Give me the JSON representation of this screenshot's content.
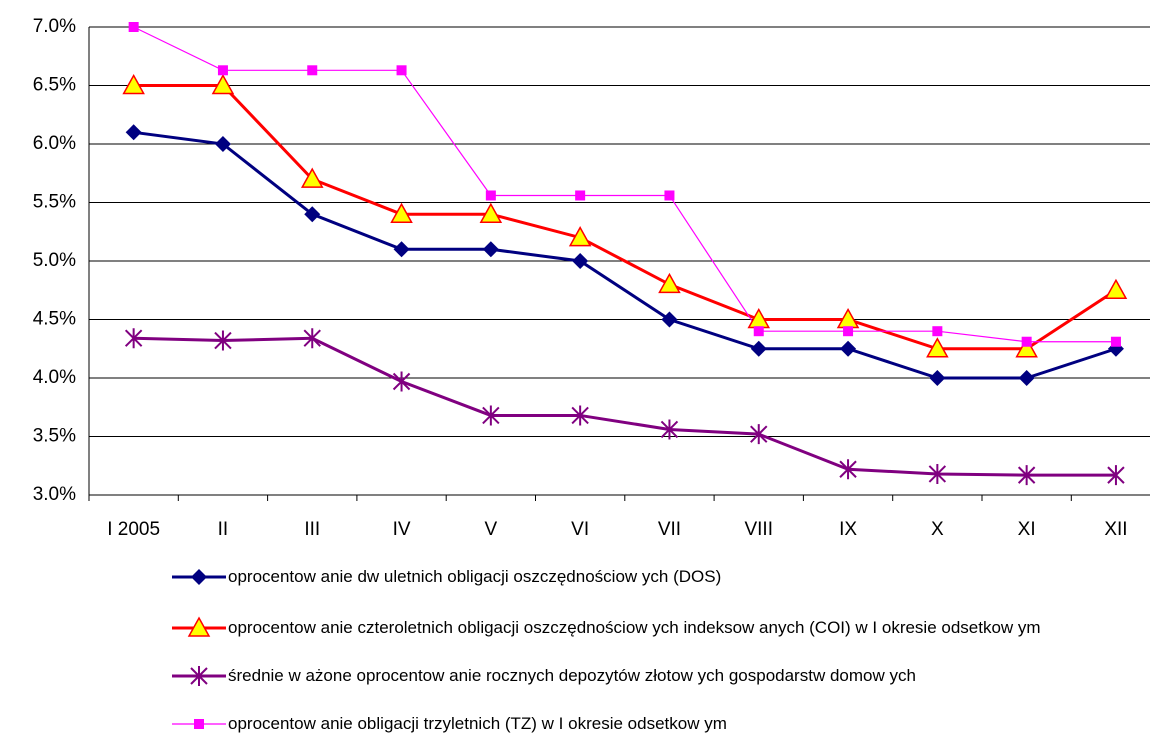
{
  "chart_data": {
    "type": "line",
    "categories": [
      "I 2005",
      "II",
      "III",
      "IV",
      "V",
      "VI",
      "VII",
      "VIII",
      "IX",
      "X",
      "XI",
      "XII"
    ],
    "series": [
      {
        "name": "oprocentow anie dw uletnich obligacji oszczędnościow ych (DOS)",
        "color": "#000080",
        "marker": "diamond",
        "values": [
          6.1,
          6.0,
          5.4,
          5.1,
          5.1,
          5.0,
          4.5,
          4.25,
          4.25,
          4.0,
          4.0,
          4.25
        ]
      },
      {
        "name": "oprocentow anie czteroletnich obligacji oszczędnościow ych indeksow anych (COI) w  I okresie odsetkow ym",
        "color": "#ff0000",
        "marker": "triangle",
        "values": [
          6.5,
          6.5,
          5.7,
          5.4,
          5.4,
          5.2,
          4.8,
          4.5,
          4.5,
          4.25,
          4.25,
          4.75
        ]
      },
      {
        "name": "średnie w ażone oprocentow anie rocznych depozytów  złotow ych gospodarstw domow ych",
        "color": "#800080",
        "marker": "star",
        "values": [
          4.34,
          4.32,
          4.34,
          3.97,
          3.68,
          3.68,
          3.56,
          3.52,
          3.22,
          3.18,
          3.17,
          3.17
        ]
      },
      {
        "name": "oprocentow anie obligacji trzyletnich (TZ) w  I okresie odsetkow ym",
        "color": "#ff00ff",
        "marker": "square",
        "values": [
          7.0,
          6.63,
          6.63,
          6.63,
          5.56,
          5.56,
          5.56,
          4.4,
          4.4,
          4.4,
          4.31,
          4.31
        ]
      }
    ],
    "ylim": [
      3.0,
      7.0
    ],
    "yticks": [
      {
        "value": 3.0,
        "label": "3.0%"
      },
      {
        "value": 3.5,
        "label": "3.5%"
      },
      {
        "value": 4.0,
        "label": "4.0%"
      },
      {
        "value": 4.5,
        "label": "4.5%"
      },
      {
        "value": 5.0,
        "label": "5.0%"
      },
      {
        "value": 5.5,
        "label": "5.5%"
      },
      {
        "value": 6.0,
        "label": "6.0%"
      },
      {
        "value": 6.5,
        "label": "6.5%"
      },
      {
        "value": 7.0,
        "label": "7.0%"
      }
    ],
    "grid": true,
    "legend": "bottom"
  }
}
